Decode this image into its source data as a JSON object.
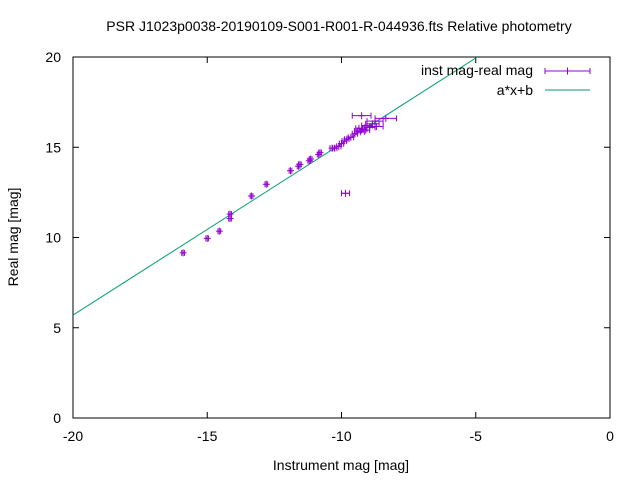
{
  "chart_data": {
    "type": "scatter",
    "title": "PSR J1023p0038-20190109-S001-R001-R-044936.fts Relative photometry",
    "xlabel": "Instrument mag [mag]",
    "ylabel": "Real mag [mag]",
    "xlim": [
      -20,
      0
    ],
    "ylim": [
      0,
      20
    ],
    "x_ticks": [
      "-20",
      "-15",
      "-10",
      "-5",
      "0"
    ],
    "y_ticks": [
      "0",
      "5",
      "10",
      "15",
      "20"
    ],
    "legend_position": "top-right",
    "grid": false,
    "colors": {
      "points": "#9400d3",
      "fit": "#009e73"
    },
    "series": [
      {
        "name": "inst mag-real mag",
        "kind": "points-with-xerror",
        "points": [
          {
            "x": -15.9,
            "y": 9.15,
            "xerr": 0.05
          },
          {
            "x": -15.0,
            "y": 9.95,
            "xerr": 0.05
          },
          {
            "x": -14.55,
            "y": 10.35,
            "xerr": 0.05
          },
          {
            "x": -14.15,
            "y": 11.05,
            "xerr": 0.05
          },
          {
            "x": -14.15,
            "y": 11.3,
            "xerr": 0.05
          },
          {
            "x": -13.35,
            "y": 12.3,
            "xerr": 0.05
          },
          {
            "x": -12.8,
            "y": 12.95,
            "xerr": 0.05
          },
          {
            "x": -11.9,
            "y": 13.7,
            "xerr": 0.05
          },
          {
            "x": -11.6,
            "y": 13.95,
            "xerr": 0.05
          },
          {
            "x": -11.55,
            "y": 14.05,
            "xerr": 0.05
          },
          {
            "x": -11.2,
            "y": 14.25,
            "xerr": 0.05
          },
          {
            "x": -11.15,
            "y": 14.35,
            "xerr": 0.05
          },
          {
            "x": -10.85,
            "y": 14.6,
            "xerr": 0.05
          },
          {
            "x": -10.8,
            "y": 14.7,
            "xerr": 0.05
          },
          {
            "x": -10.35,
            "y": 14.95,
            "xerr": 0.08
          },
          {
            "x": -10.25,
            "y": 14.95,
            "xerr": 0.08
          },
          {
            "x": -10.1,
            "y": 15.05,
            "xerr": 0.08
          },
          {
            "x": -10.0,
            "y": 15.2,
            "xerr": 0.08
          },
          {
            "x": -9.9,
            "y": 15.35,
            "xerr": 0.08
          },
          {
            "x": -9.8,
            "y": 15.45,
            "xerr": 0.08
          },
          {
            "x": -9.65,
            "y": 15.55,
            "xerr": 0.1
          },
          {
            "x": -9.5,
            "y": 15.75,
            "xerr": 0.1
          },
          {
            "x": -9.4,
            "y": 15.9,
            "xerr": 0.12
          },
          {
            "x": -9.35,
            "y": 16.05,
            "xerr": 0.12
          },
          {
            "x": -9.3,
            "y": 15.85,
            "xerr": 0.15
          },
          {
            "x": -9.2,
            "y": 16.0,
            "xerr": 0.15
          },
          {
            "x": -9.1,
            "y": 15.95,
            "xerr": 0.15
          },
          {
            "x": -9.05,
            "y": 16.2,
            "xerr": 0.2
          },
          {
            "x": -8.95,
            "y": 16.1,
            "xerr": 0.2
          },
          {
            "x": -8.85,
            "y": 16.3,
            "xerr": 0.25
          },
          {
            "x": -8.75,
            "y": 16.45,
            "xerr": 0.3
          },
          {
            "x": -9.25,
            "y": 16.75,
            "xerr": 0.35
          },
          {
            "x": -8.7,
            "y": 16.15,
            "xerr": 0.25
          },
          {
            "x": -8.35,
            "y": 16.6,
            "xerr": 0.4
          },
          {
            "x": -9.85,
            "y": 12.45,
            "xerr": 0.15
          }
        ]
      },
      {
        "name": "a*x+b",
        "kind": "line",
        "x": [
          -20,
          -4.94
        ],
        "y": [
          5.7,
          20.0
        ]
      }
    ]
  }
}
